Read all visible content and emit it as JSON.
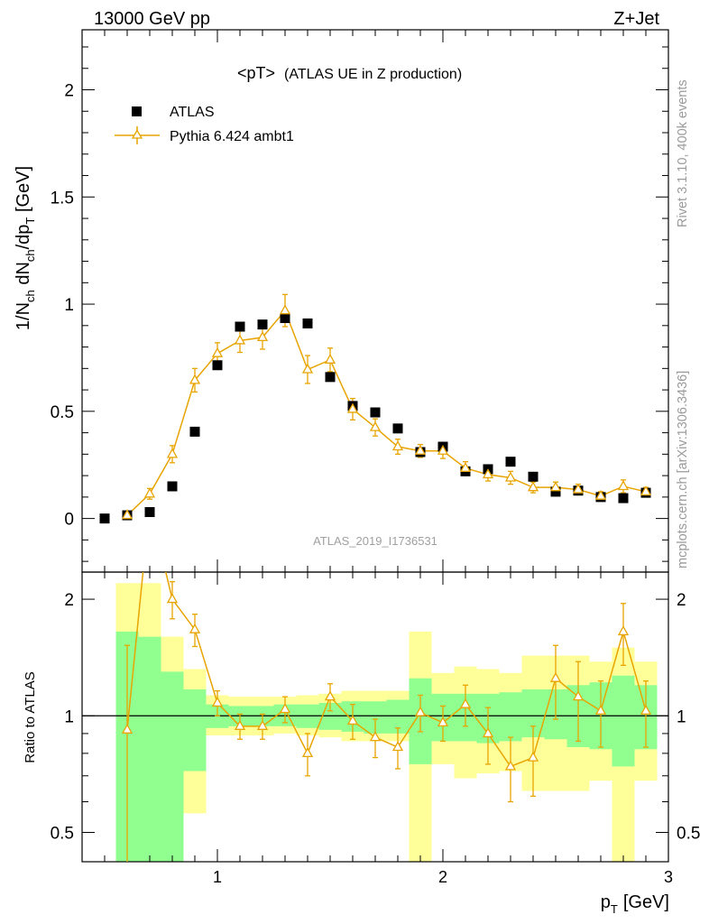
{
  "header": {
    "left": "13000 GeV pp",
    "right": "Z+Jet"
  },
  "side_text": {
    "top": "Rivet 3.1.10,  400k events",
    "bottom": "mcplots.cern.ch [arXiv:1306.3436]"
  },
  "colors": {
    "mc_line": "#e8a400",
    "band_inner": "#90ff90",
    "band_outer": "#ffff99",
    "data_marker": "#000000",
    "side_text": "#9a9a9a"
  },
  "chart_data": [
    {
      "type": "scatter",
      "panel": "main",
      "title": "<pT>",
      "title_suffix": "(ATLAS UE in Z production)",
      "watermark": "ATLAS_2019_I1736531",
      "xlabel_main": "p",
      "xlabel_sub": "T",
      "xlabel_unit": "[GeV]",
      "ylabel": "1/N_ch dN_ch/dp_T [GeV]",
      "ylabel_parts": {
        "a": "1/N",
        "a_sub": "ch",
        "b": " dN",
        "b_sub": "ch",
        "c": "/dp",
        "c_sub": "T",
        "d": " [GeV]"
      },
      "xlim": [
        0.4,
        3.0
      ],
      "ylim": [
        -0.25,
        2.28
      ],
      "x_ticks": [
        1,
        2,
        3
      ],
      "x_tick_labels": [
        "1",
        "2",
        "3"
      ],
      "y_ticks": [
        0,
        0.5,
        1,
        1.5,
        2
      ],
      "y_tick_labels": [
        "0",
        "0.5",
        "1",
        "1.5",
        "2"
      ],
      "legend_position": "top-left",
      "series": [
        {
          "name": "ATLAS",
          "style": "square-marker",
          "x": [
            0.5,
            0.6,
            0.7,
            0.8,
            0.9,
            1.0,
            1.1,
            1.2,
            1.3,
            1.4,
            1.5,
            1.6,
            1.7,
            1.8,
            1.9,
            2.0,
            2.1,
            2.2,
            2.3,
            2.4,
            2.5,
            2.6,
            2.7,
            2.8,
            2.9
          ],
          "y": [
            0.0,
            0.015,
            0.03,
            0.15,
            0.405,
            0.715,
            0.895,
            0.905,
            0.935,
            0.91,
            0.66,
            0.525,
            0.495,
            0.42,
            0.31,
            0.335,
            0.22,
            0.23,
            0.265,
            0.195,
            0.125,
            0.13,
            0.1,
            0.095,
            0.12
          ]
        },
        {
          "name": "Pythia 6.424 ambt1",
          "style": "line-open-triangle",
          "x": [
            0.6,
            0.7,
            0.8,
            0.9,
            1.0,
            1.1,
            1.2,
            1.3,
            1.4,
            1.5,
            1.6,
            1.7,
            1.8,
            1.9,
            2.0,
            2.1,
            2.2,
            2.3,
            2.4,
            2.5,
            2.6,
            2.7,
            2.8,
            2.9
          ],
          "y": [
            0.015,
            0.115,
            0.3,
            0.645,
            0.77,
            0.83,
            0.845,
            0.97,
            0.695,
            0.74,
            0.51,
            0.425,
            0.335,
            0.315,
            0.315,
            0.235,
            0.205,
            0.19,
            0.145,
            0.145,
            0.135,
            0.105,
            0.15,
            0.125
          ],
          "yerr": [
            0.01,
            0.025,
            0.04,
            0.055,
            0.05,
            0.055,
            0.055,
            0.075,
            0.065,
            0.055,
            0.05,
            0.04,
            0.035,
            0.03,
            0.035,
            0.03,
            0.03,
            0.03,
            0.025,
            0.025,
            0.025,
            0.02,
            0.03,
            0.02
          ]
        }
      ]
    },
    {
      "type": "line",
      "panel": "ratio",
      "ylabel": "Ratio to ATLAS",
      "scale": "log",
      "xlim": [
        0.4,
        3.0
      ],
      "ylim": [
        0.42,
        2.35
      ],
      "y_ticks": [
        0.5,
        1,
        2
      ],
      "y_tick_labels": [
        "0.5",
        "1",
        "2"
      ],
      "reference_line": 1.0,
      "bands": {
        "x_low": [
          0.55,
          0.65,
          0.75,
          0.85,
          0.95,
          1.05,
          1.15,
          1.25,
          1.35,
          1.45,
          1.55,
          1.65,
          1.75,
          1.85,
          1.95,
          2.05,
          2.15,
          2.25,
          2.35,
          2.45,
          2.55,
          2.65,
          2.75,
          2.85
        ],
        "x_high": [
          0.65,
          0.75,
          0.85,
          0.95,
          1.05,
          1.15,
          1.25,
          1.35,
          1.45,
          1.55,
          1.65,
          1.75,
          1.85,
          1.95,
          2.05,
          2.15,
          2.25,
          2.35,
          2.45,
          2.55,
          2.65,
          2.75,
          2.85,
          2.95
        ],
        "inner_low": [
          0.3,
          0.3,
          0.42,
          0.72,
          0.93,
          0.94,
          0.94,
          0.94,
          0.93,
          0.92,
          0.91,
          0.9,
          0.9,
          0.75,
          0.86,
          0.86,
          0.85,
          0.86,
          0.88,
          0.87,
          0.83,
          0.82,
          0.74,
          0.82
        ],
        "inner_high": [
          1.65,
          1.6,
          1.3,
          1.17,
          1.07,
          1.06,
          1.06,
          1.07,
          1.07,
          1.08,
          1.09,
          1.09,
          1.1,
          1.25,
          1.14,
          1.14,
          1.14,
          1.15,
          1.17,
          1.17,
          1.2,
          1.22,
          1.27,
          1.2
        ],
        "outer_low": [
          0.3,
          0.3,
          0.3,
          0.56,
          0.89,
          0.89,
          0.89,
          0.9,
          0.89,
          0.88,
          0.86,
          0.86,
          0.86,
          0.37,
          0.75,
          0.69,
          0.71,
          0.72,
          0.64,
          0.64,
          0.64,
          0.68,
          0.37,
          0.68
        ],
        "outer_high": [
          2.2,
          2.2,
          1.6,
          1.32,
          1.13,
          1.12,
          1.12,
          1.12,
          1.13,
          1.14,
          1.16,
          1.16,
          1.16,
          1.65,
          1.29,
          1.34,
          1.32,
          1.29,
          1.43,
          1.43,
          1.43,
          1.38,
          1.5,
          1.38
        ]
      },
      "series": [
        {
          "name": "Pythia 6.424 ambt1",
          "x": [
            0.6,
            0.7,
            0.8,
            0.9,
            1.0,
            1.1,
            1.2,
            1.3,
            1.4,
            1.5,
            1.6,
            1.7,
            1.8,
            1.9,
            2.0,
            2.1,
            2.2,
            2.3,
            2.4,
            2.5,
            2.6,
            2.7,
            2.8,
            2.9
          ],
          "y": [
            0.92,
            3.5,
            2.0,
            1.67,
            1.08,
            0.94,
            0.94,
            1.04,
            0.8,
            1.12,
            0.97,
            0.88,
            0.83,
            1.02,
            0.96,
            1.07,
            0.9,
            0.74,
            0.78,
            1.25,
            1.12,
            1.03,
            1.65,
            1.03
          ],
          "yerr": [
            0.6,
            0.5,
            0.22,
            0.16,
            0.08,
            0.07,
            0.07,
            0.08,
            0.1,
            0.09,
            0.1,
            0.1,
            0.1,
            0.11,
            0.1,
            0.13,
            0.15,
            0.14,
            0.16,
            0.27,
            0.26,
            0.2,
            0.3,
            0.2
          ]
        }
      ]
    }
  ]
}
